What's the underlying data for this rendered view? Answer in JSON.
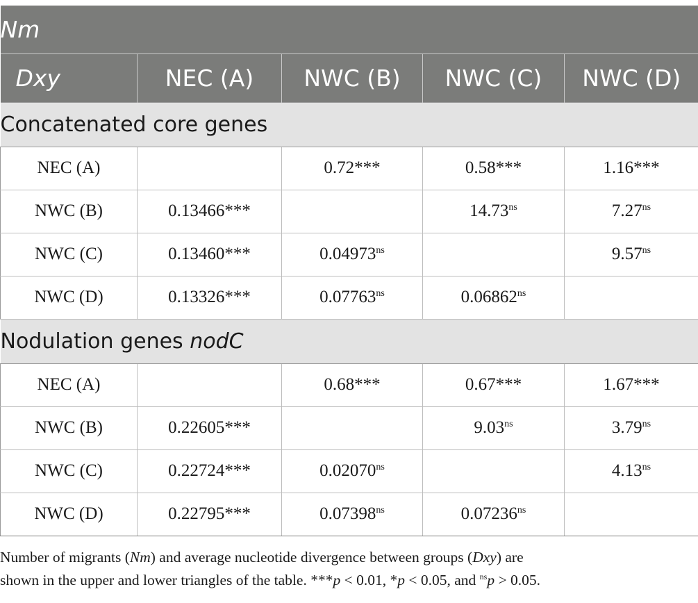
{
  "header": {
    "title": "Nm",
    "row_label": "Dxy",
    "columns": [
      "NEC (A)",
      "NWC (B)",
      "NWC (C)",
      "NWC (D)"
    ]
  },
  "sections": [
    {
      "title_prefix": "Concatenated core genes",
      "title_italic": "",
      "rows": [
        {
          "label": "NEC (A)",
          "cells": [
            {
              "v": "",
              "s": ""
            },
            {
              "v": "0.72***",
              "s": ""
            },
            {
              "v": "0.58***",
              "s": ""
            },
            {
              "v": "1.16***",
              "s": ""
            }
          ]
        },
        {
          "label": "NWC (B)",
          "cells": [
            {
              "v": "0.13466***",
              "s": ""
            },
            {
              "v": "",
              "s": ""
            },
            {
              "v": "14.73",
              "s": "ns"
            },
            {
              "v": "7.27",
              "s": "ns"
            }
          ]
        },
        {
          "label": "NWC (C)",
          "cells": [
            {
              "v": "0.13460***",
              "s": ""
            },
            {
              "v": "0.04973",
              "s": "ns"
            },
            {
              "v": "",
              "s": ""
            },
            {
              "v": "9.57",
              "s": "ns"
            }
          ]
        },
        {
          "label": "NWC (D)",
          "cells": [
            {
              "v": "0.13326***",
              "s": ""
            },
            {
              "v": "0.07763",
              "s": "ns"
            },
            {
              "v": "0.06862",
              "s": "ns"
            },
            {
              "v": "",
              "s": ""
            }
          ]
        }
      ]
    },
    {
      "title_prefix": "Nodulation genes ",
      "title_italic": "nodC",
      "rows": [
        {
          "label": "NEC (A)",
          "cells": [
            {
              "v": "",
              "s": ""
            },
            {
              "v": "0.68***",
              "s": ""
            },
            {
              "v": "0.67***",
              "s": ""
            },
            {
              "v": "1.67***",
              "s": ""
            }
          ]
        },
        {
          "label": "NWC (B)",
          "cells": [
            {
              "v": "0.22605***",
              "s": ""
            },
            {
              "v": "",
              "s": ""
            },
            {
              "v": "9.03",
              "s": "ns"
            },
            {
              "v": "3.79",
              "s": "ns"
            }
          ]
        },
        {
          "label": "NWC (C)",
          "cells": [
            {
              "v": "0.22724***",
              "s": ""
            },
            {
              "v": "0.02070",
              "s": "ns"
            },
            {
              "v": "",
              "s": ""
            },
            {
              "v": "4.13",
              "s": "ns"
            }
          ]
        },
        {
          "label": "NWC (D)",
          "cells": [
            {
              "v": "0.22795***",
              "s": ""
            },
            {
              "v": "0.07398",
              "s": "ns"
            },
            {
              "v": "0.07236",
              "s": "ns"
            },
            {
              "v": "",
              "s": ""
            }
          ]
        }
      ]
    }
  ],
  "footnote": {
    "t1": "Number of migrants (",
    "nm": "Nm",
    "t2": ") and average nucleotide divergence between groups (",
    "dxy": "Dxy",
    "t3": ") are",
    "t4": "shown in the upper and lower triangles of the table. ***",
    "p1": "p",
    "t5": " < 0.01, *",
    "p2": "p",
    "t6": " < 0.05, and ",
    "ns": "ns",
    "p3": "p",
    "t7": " > 0.05."
  }
}
